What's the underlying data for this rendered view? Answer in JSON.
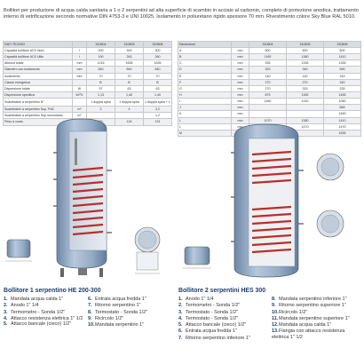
{
  "intro": "Bollitori per produzione di acqua calda sanitaria a 1 o 2 serpentini ad alta superficie di scambio in acciaio al carbonio, completo di protezione anodica, trattamento interno di vetrificazione secondo normative DIN 4753-3 e UNI 10025. Isolamento in poliuretano rigido spessore 70 mm. Rivestimento colore Sky Blue RAL 5010.",
  "tech_table": {
    "title": "DATI TECNICI",
    "columns": [
      "310604",
      "310605",
      "310606"
    ],
    "rows": [
      {
        "label": "Capacità bollitore ACS Nom.",
        "unit": "l",
        "values": [
          "200",
          "300",
          "300"
        ]
      },
      {
        "label": "Capacità bollitore ACS Utile",
        "unit": "l",
        "values": [
          "190",
          "263",
          "260"
        ]
      },
      {
        "label": "Altezza totale",
        "unit": "mm",
        "values": [
          "1215",
          "1635",
          "1635"
        ]
      },
      {
        "label": "Diametro con isolamento",
        "unit": "mm",
        "values": [
          "640",
          "640",
          "640"
        ]
      },
      {
        "label": "Isolamento",
        "unit": "mm",
        "values": [
          "70",
          "70",
          "70"
        ]
      },
      {
        "label": "Classe energetica",
        "unit": "",
        "values": [
          "B",
          "B",
          "B"
        ]
      },
      {
        "label": "Dispersione totale",
        "unit": "W",
        "values": [
          "57",
          "63",
          "63"
        ]
      },
      {
        "label": "Dispersione specifica",
        "unit": "W/°K",
        "values": [
          "1,13",
          "1,40",
          "1,40"
        ]
      },
      {
        "label": "Scambiatori a serpentino N°",
        "unit": "",
        "values": [
          "1 doppia spira",
          "1 doppia spira",
          "1 doppia spira + 1 solare"
        ],
        "tall": true
      },
      {
        "label": "Scambiatori a serpentino Sup. PdC",
        "unit": "m²",
        "values": [
          "3",
          "4",
          "3,2"
        ]
      },
      {
        "label": "Scambiatori a serpentino Sup secondario",
        "unit": "m²",
        "values": [
          "",
          "",
          "1,2"
        ]
      },
      {
        "label": "Peso a vuoto",
        "unit": "kg",
        "values": [
          "90",
          "124",
          "131"
        ]
      }
    ]
  },
  "dim_table": {
    "title": "Dimensioni",
    "columns": [
      "310604",
      "310605",
      "310606"
    ],
    "rows": [
      {
        "label": "A",
        "unit": "mm",
        "values": [
          "500",
          "500",
          "500"
        ]
      },
      {
        "label": "B",
        "unit": "mm",
        "values": [
          "1165",
          "1380",
          "1410"
        ]
      },
      {
        "label": "C",
        "unit": "mm",
        "values": [
          "935",
          "1335",
          "1335"
        ]
      },
      {
        "label": "D",
        "unit": "mm",
        "values": [
          "320",
          "340",
          "590"
        ]
      },
      {
        "label": "E",
        "unit": "mm",
        "values": [
          "140",
          "140",
          "315"
        ]
      },
      {
        "label": "F",
        "unit": "mm",
        "values": [
          "270",
          "270",
          "340"
        ]
      },
      {
        "label": "G",
        "unit": "mm",
        "values": [
          "270",
          "315",
          "235"
        ]
      },
      {
        "label": "H",
        "unit": "mm",
        "values": [
          "875",
          "1155",
          "1455"
        ]
      },
      {
        "label": "I",
        "unit": "mm",
        "values": [
          "1160",
          "1310",
          "1050"
        ]
      },
      {
        "label": "J",
        "unit": "mm",
        "values": [
          "",
          "",
          "865"
        ]
      },
      {
        "label": "K",
        "unit": "mm",
        "values": [
          "",
          "",
          "1490"
        ]
      },
      {
        "label": "L",
        "unit": "mm",
        "values": [
          "1070",
          "1380",
          "1410"
        ]
      },
      {
        "label": "L",
        "unit": "mm",
        "values": [
          "1075",
          "1470",
          "1470"
        ]
      },
      {
        "label": "M",
        "unit": "mm",
        "values": [
          "",
          "",
          "1535"
        ]
      }
    ]
  },
  "left_heading": "Bollitore 1 serpentino HE 200-300",
  "right_heading": "Bollitore 2 serpentini HES 300",
  "left_list_1": [
    {
      "n": "1.",
      "t": "Mandata acqua calda 1\""
    },
    {
      "n": "2.",
      "t": "Anodo 1\" 1/4"
    },
    {
      "n": "3.",
      "t": "Termometro - Sonda 1/2\""
    },
    {
      "n": "4.",
      "t": "Attacco resistenza elettrica 1\" 1/2",
      "wrap": true
    },
    {
      "n": "5.",
      "t": "Attacco bancale (cieco) 1/2\""
    }
  ],
  "left_list_2": [
    {
      "n": "6.",
      "t": "Entrata acqua fredda 1\""
    },
    {
      "n": "7.",
      "t": "Ritorno serpentino 1\""
    },
    {
      "n": "8.",
      "t": "Termostato - Sonda 1/2\""
    },
    {
      "n": "9.",
      "t": "Ricircolo 1/2\""
    },
    {
      "n": "10.",
      "t": "Mandata serpentino 1\""
    }
  ],
  "right_list_1": [
    {
      "n": "1.",
      "t": "Anodo 1\" 1/4"
    },
    {
      "n": "2.",
      "t": "Termometro - Sonda 1/2\""
    },
    {
      "n": "3.",
      "t": "Termostato - Sonda 1/2\""
    },
    {
      "n": "4.",
      "t": "Termostato - Sonda 1/2\""
    },
    {
      "n": "5.",
      "t": "Attacco bancale (cieco) 1/2\""
    },
    {
      "n": "6.",
      "t": "Entrata acqua fredda 1\""
    },
    {
      "n": "7.",
      "t": "Ritorno serpentino inferiore 1\""
    }
  ],
  "right_list_2": [
    {
      "n": "8.",
      "t": "Mandata serpentino inferiore 1\""
    },
    {
      "n": "9.",
      "t": "Ritorno serpentino superiore 1\""
    },
    {
      "n": "10.",
      "t": "Ricircolo 1/2\""
    },
    {
      "n": "11.",
      "t": "Mandata serpentino superiore 1\""
    },
    {
      "n": "12.",
      "t": "Mandata acqua calda 1\""
    },
    {
      "n": "13.",
      "t": "Flangia con attacco resistenza elettrica 1\" 1/2",
      "wrap": true
    }
  ],
  "colors": {
    "tank_blue": "#8fa6c2",
    "heading_blue": "#1d3f6e",
    "coil_red": "#b8302a"
  }
}
